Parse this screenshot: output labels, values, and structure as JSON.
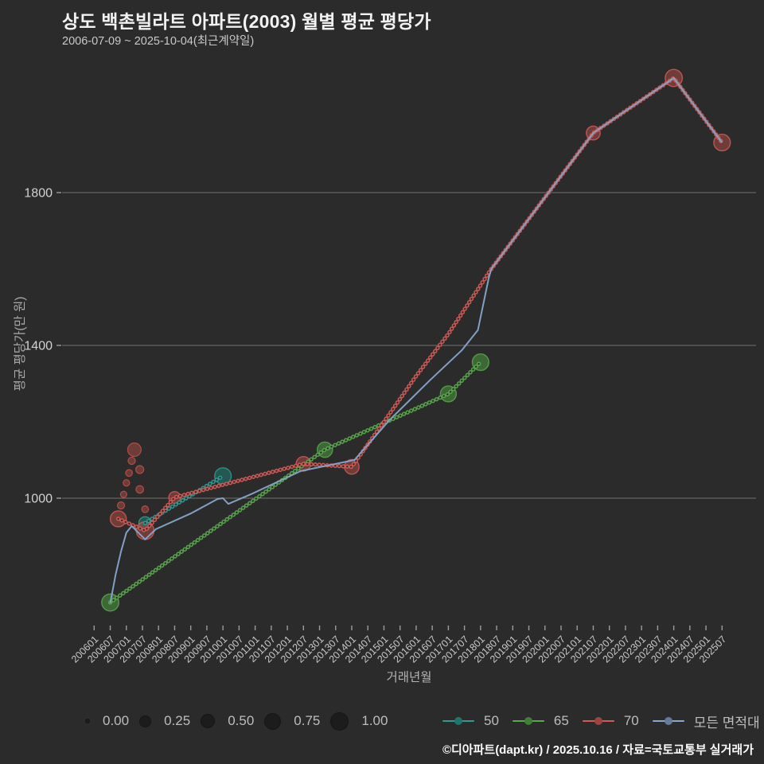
{
  "chart_data": {
    "type": "line",
    "title": "상도 백촌빌라트 아파트(2003) 월별 평균 평당가",
    "subtitle": "2006-07-09 ~ 2025-10-04(최근계약일)",
    "xlabel": "거래년월",
    "ylabel": "평균 평당가(만 원)",
    "grid": true,
    "legend_position": "bottom",
    "y_ticks": [
      1000,
      1400,
      1800
    ],
    "ylim": [
      620,
      2170
    ],
    "x_ticks": [
      "200601",
      "200607",
      "200701",
      "200707",
      "200801",
      "200807",
      "200901",
      "200907",
      "201001",
      "201007",
      "201101",
      "201107",
      "201201",
      "201207",
      "201301",
      "201307",
      "201401",
      "201407",
      "201501",
      "201507",
      "201601",
      "201607",
      "201701",
      "201707",
      "201801",
      "201807",
      "201901",
      "201907",
      "202001",
      "202007",
      "202101",
      "202107",
      "202201",
      "202207",
      "202301",
      "202307",
      "202401",
      "202407",
      "202501",
      "202507"
    ],
    "series": [
      {
        "name": "50",
        "color": "#2e9c92",
        "dot_fill": "#1f7d72",
        "style": "dotted",
        "points": [
          {
            "x": "200708",
            "y": 935,
            "size": 0.55
          },
          {
            "x": "201001",
            "y": 1058,
            "size": 1.1
          }
        ]
      },
      {
        "name": "65",
        "color": "#58a74c",
        "dot_fill": "#4c9a40",
        "style": "dotted",
        "points": [
          {
            "x": "200607",
            "y": 727,
            "size": 1.2
          },
          {
            "x": "201303",
            "y": 1127,
            "size": 0.9
          },
          {
            "x": "201701",
            "y": 1273,
            "size": 1.0
          },
          {
            "x": "201801",
            "y": 1356,
            "size": 1.1
          }
        ]
      },
      {
        "name": "70",
        "color": "#d25a55",
        "dot_fill": "#a84a44",
        "style": "dotted",
        "points": [
          {
            "x": "200610",
            "y": 946,
            "size": 1.0
          },
          {
            "x": "200708",
            "y": 915,
            "size": 1.3
          },
          {
            "x": "200807",
            "y": 1002,
            "size": 0.45
          },
          {
            "x": "201207",
            "y": 1090,
            "size": 0.8
          },
          {
            "x": "201401",
            "y": 1082,
            "size": 0.8
          },
          {
            "x": "201501",
            "y": 1200,
            "size": 0
          },
          {
            "x": "201601",
            "y": 1320,
            "size": 0
          },
          {
            "x": "201701",
            "y": 1430,
            "size": 0
          },
          {
            "x": "201805",
            "y": 1600,
            "size": 0
          },
          {
            "x": "202107",
            "y": 1956,
            "size": 0.7
          },
          {
            "x": "202401",
            "y": 2100,
            "size": 1.2
          },
          {
            "x": "202507",
            "y": 1931,
            "size": 1.1
          }
        ]
      },
      {
        "name": "모든 면적대 평균값",
        "color": "#87a5cd",
        "style": "solid",
        "points": [
          {
            "x": "200607",
            "y": 725
          },
          {
            "x": "200609",
            "y": 800
          },
          {
            "x": "200611",
            "y": 860
          },
          {
            "x": "200701",
            "y": 910
          },
          {
            "x": "200703",
            "y": 927
          },
          {
            "x": "200708",
            "y": 892
          },
          {
            "x": "200712",
            "y": 919
          },
          {
            "x": "200901",
            "y": 960
          },
          {
            "x": "200911",
            "y": 998
          },
          {
            "x": "201001",
            "y": 1000
          },
          {
            "x": "201003",
            "y": 985
          },
          {
            "x": "201012",
            "y": 1012
          },
          {
            "x": "201206",
            "y": 1071
          },
          {
            "x": "201402",
            "y": 1100
          },
          {
            "x": "201503",
            "y": 1204
          },
          {
            "x": "201606",
            "y": 1308
          },
          {
            "x": "201706",
            "y": 1387
          },
          {
            "x": "201712",
            "y": 1440
          },
          {
            "x": "201804",
            "y": 1575
          },
          {
            "x": "201805",
            "y": 1600
          },
          {
            "x": "202107",
            "y": 1956
          },
          {
            "x": "202401",
            "y": 2100
          },
          {
            "x": "202507",
            "y": 1931
          }
        ]
      }
    ],
    "scatter": {
      "name": "개별 거래",
      "color": "#c9524b",
      "points": [
        {
          "x": "200704",
          "y": 1127,
          "size": 0.65
        },
        {
          "x": "200703",
          "y": 1098,
          "size": 0.1
        },
        {
          "x": "200706",
          "y": 1075,
          "size": 0.14
        },
        {
          "x": "200702",
          "y": 1066,
          "size": 0.08
        },
        {
          "x": "200701",
          "y": 1040,
          "size": 0.07
        },
        {
          "x": "200706",
          "y": 1023,
          "size": 0.12
        },
        {
          "x": "200612",
          "y": 1010,
          "size": 0.06
        },
        {
          "x": "200611",
          "y": 981,
          "size": 0.1
        },
        {
          "x": "200708",
          "y": 971,
          "size": 0.08
        }
      ]
    },
    "size_legend": {
      "labels": [
        "0.00",
        "0.25",
        "0.50",
        "0.75",
        "1.00"
      ],
      "values": [
        0,
        0.25,
        0.5,
        0.75,
        1.0
      ]
    },
    "legend": [
      "50",
      "65",
      "70",
      "모든 면적대 평균값"
    ]
  },
  "footer": {
    "credit": "©디아파트(dapt.kr) / 2025.10.16 / 자료=국토교통부 실거래가"
  }
}
